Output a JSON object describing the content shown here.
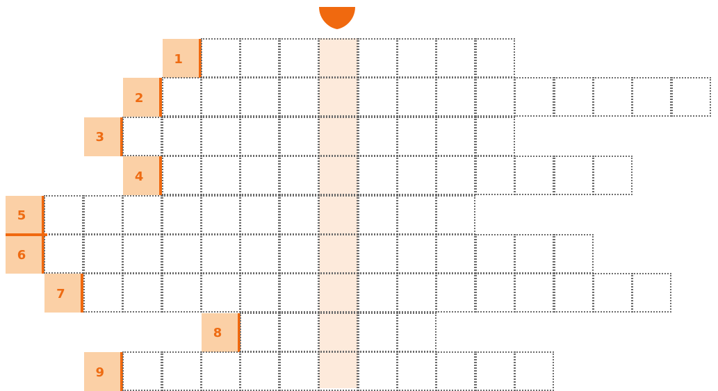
{
  "puzzle": {
    "type": "crossword",
    "colors": {
      "accent": "#f0690f",
      "clue_box": "#fbd0a6",
      "highlight_column": "#fdeadb",
      "grid_line": "#6a6a6a"
    },
    "highlighted_column_index": 8,
    "rows": [
      {
        "number": "1",
        "start_col": 5,
        "length": 8
      },
      {
        "number": "2",
        "start_col": 4,
        "length": 14
      },
      {
        "number": "3",
        "start_col": 3,
        "length": 10
      },
      {
        "number": "4",
        "start_col": 4,
        "length": 12
      },
      {
        "number": "5",
        "start_col": 1,
        "length": 11
      },
      {
        "number": "6",
        "start_col": 1,
        "length": 14
      },
      {
        "number": "7",
        "start_col": 2,
        "length": 15
      },
      {
        "number": "8",
        "start_col": 6,
        "length": 5
      },
      {
        "number": "9",
        "start_col": 3,
        "length": 11
      }
    ]
  }
}
